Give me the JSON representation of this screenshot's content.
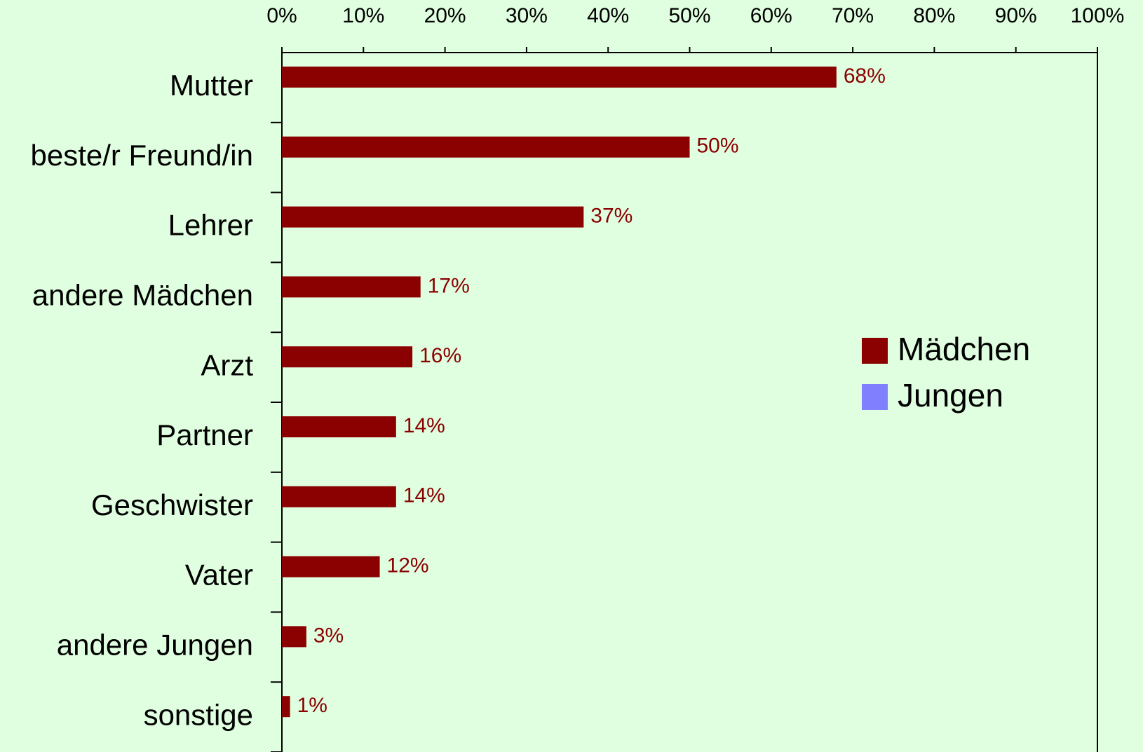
{
  "chart_data": {
    "type": "barh",
    "categories": [
      "Mutter",
      "beste/r Freund/in",
      "Lehrer",
      "andere Mädchen",
      "Arzt",
      "Partner",
      "Geschwister",
      "Vater",
      "andere Jungen",
      "sonstige"
    ],
    "series": [
      {
        "name": "Mädchen",
        "color": "#8b0000",
        "values": [
          68,
          50,
          37,
          17,
          16,
          14,
          14,
          12,
          3,
          1
        ],
        "value_labels": [
          "68%",
          "50%",
          "37%",
          "17%",
          "16%",
          "14%",
          "14%",
          "12%",
          "3%",
          "1%"
        ]
      },
      {
        "name": "Jungen",
        "color": "#8080ff",
        "values": [
          null,
          null,
          null,
          null,
          null,
          null,
          null,
          null,
          null,
          null
        ]
      }
    ],
    "xlim": [
      0,
      100
    ],
    "xticks": [
      {
        "value": 0,
        "label": "0%"
      },
      {
        "value": 10,
        "label": "10%"
      },
      {
        "value": 20,
        "label": "20%"
      },
      {
        "value": 30,
        "label": "30%"
      },
      {
        "value": 40,
        "label": "40%"
      },
      {
        "value": 50,
        "label": "50%"
      },
      {
        "value": 60,
        "label": "60%"
      },
      {
        "value": 70,
        "label": "70%"
      },
      {
        "value": 80,
        "label": "80%"
      },
      {
        "value": 90,
        "label": "90%"
      },
      {
        "value": 100,
        "label": "100%"
      }
    ],
    "legend": "right"
  }
}
